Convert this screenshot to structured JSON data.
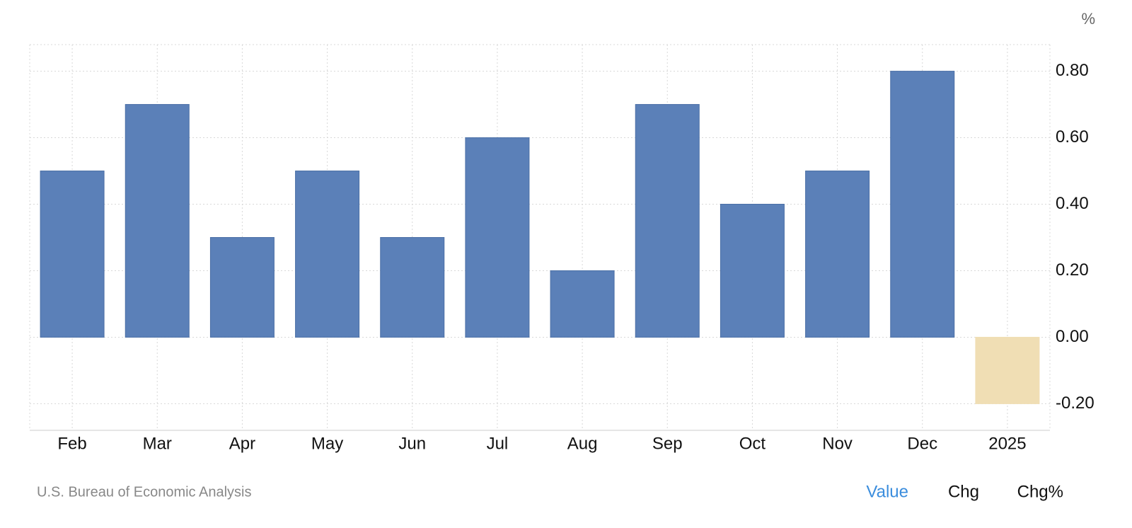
{
  "chart_data": {
    "type": "bar",
    "unit": "%",
    "categories": [
      "Feb",
      "Mar",
      "Apr",
      "May",
      "Jun",
      "Jul",
      "Aug",
      "Sep",
      "Oct",
      "Nov",
      "Dec",
      "2025"
    ],
    "values": [
      0.5,
      0.7,
      0.3,
      0.5,
      0.3,
      0.6,
      0.2,
      0.7,
      0.4,
      0.5,
      0.8,
      -0.2
    ],
    "colors": [
      "#5b80b8",
      "#5b80b8",
      "#5b80b8",
      "#5b80b8",
      "#5b80b8",
      "#5b80b8",
      "#5b80b8",
      "#5b80b8",
      "#5b80b8",
      "#5b80b8",
      "#5b80b8",
      "#f0deb4"
    ],
    "ylim": [
      -0.28,
      0.88
    ],
    "yticks": [
      {
        "value": -0.2,
        "label": "-0.20"
      },
      {
        "value": 0,
        "label": "0.00"
      },
      {
        "value": 0.2,
        "label": "0.20"
      },
      {
        "value": 0.4,
        "label": "0.40"
      },
      {
        "value": 0.6,
        "label": "0.60"
      },
      {
        "value": 0.8,
        "label": "0.80"
      }
    ],
    "grid": true,
    "source": "U.S. Bureau of Economic Analysis",
    "buttons": [
      "Value",
      "Chg",
      "Chg%"
    ]
  }
}
